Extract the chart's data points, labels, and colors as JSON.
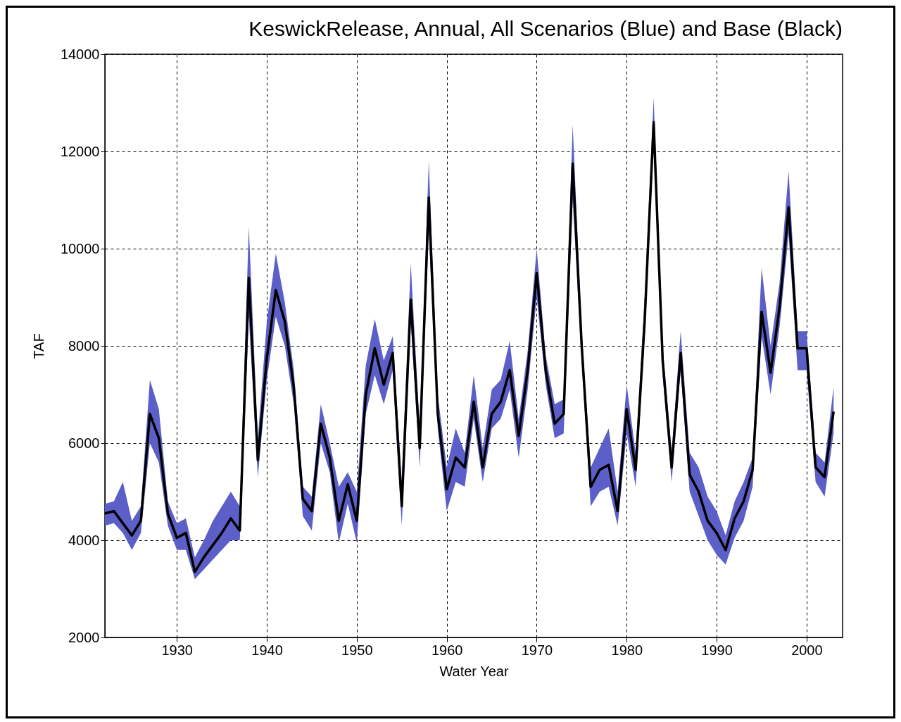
{
  "chart_data": {
    "type": "line",
    "title": "KeswickRelease, Annual, All Scenarios (Blue) and Base (Black)",
    "xlabel": "Water Year",
    "ylabel": "TAF",
    "x": [
      1922,
      1923,
      1924,
      1925,
      1926,
      1927,
      1928,
      1929,
      1930,
      1931,
      1932,
      1933,
      1934,
      1935,
      1936,
      1937,
      1938,
      1939,
      1940,
      1941,
      1942,
      1943,
      1944,
      1945,
      1946,
      1947,
      1948,
      1949,
      1950,
      1951,
      1952,
      1953,
      1954,
      1955,
      1956,
      1957,
      1958,
      1959,
      1960,
      1961,
      1962,
      1963,
      1964,
      1965,
      1966,
      1967,
      1968,
      1969,
      1970,
      1971,
      1972,
      1973,
      1974,
      1975,
      1976,
      1977,
      1978,
      1979,
      1980,
      1981,
      1982,
      1983,
      1984,
      1985,
      1986,
      1987,
      1988,
      1989,
      1990,
      1991,
      1992,
      1993,
      1994,
      1995,
      1996,
      1997,
      1998,
      1999,
      2000,
      2001,
      2002,
      2003
    ],
    "series": [
      {
        "color": "#000000",
        "values": [
          4550,
          4600,
          4350,
          4100,
          4400,
          6600,
          6100,
          4550,
          4050,
          4150,
          3350,
          3650,
          3900,
          4150,
          4450,
          4200,
          9400,
          5650,
          7750,
          9150,
          8500,
          7150,
          4850,
          4600,
          6400,
          5700,
          4400,
          5150,
          4400,
          7000,
          7950,
          7200,
          7850,
          4700,
          8950,
          5900,
          11050,
          6600,
          5050,
          5700,
          5500,
          6850,
          5500,
          6600,
          6850,
          7500,
          6150,
          7500,
          9500,
          7500,
          6400,
          6600,
          11750,
          8000,
          5100,
          5450,
          5550,
          4600,
          6700,
          5450,
          8500,
          12600,
          7700,
          5500,
          7850,
          5350,
          5000,
          4400,
          4150,
          3800,
          4450,
          4800,
          5450,
          8700,
          7450,
          8800,
          10850,
          7950,
          7950,
          5500,
          5300,
          6650
        ],
        "upper": [
          4750,
          4800,
          5200,
          4400,
          4700,
          7300,
          6700,
          4800,
          4350,
          4450,
          3650,
          4000,
          4400,
          4700,
          5000,
          4700,
          10450,
          6100,
          8500,
          9900,
          8900,
          7500,
          5100,
          4900,
          6800,
          6000,
          5100,
          5400,
          5000,
          7600,
          8550,
          7700,
          8200,
          5200,
          9700,
          6300,
          11800,
          7000,
          5500,
          6300,
          5800,
          7400,
          5900,
          7100,
          7300,
          8100,
          6500,
          7900,
          10000,
          7800,
          6800,
          6900,
          12550,
          8300,
          5500,
          5900,
          6300,
          5000,
          7200,
          5800,
          9000,
          13100,
          8000,
          5800,
          8300,
          5800,
          5500,
          4900,
          4600,
          4100,
          4800,
          5200,
          5700,
          9600,
          8000,
          9300,
          11600,
          8300,
          8300,
          5800,
          5600,
          7150
        ],
        "lower": [
          4300,
          4350,
          4150,
          3800,
          4150,
          6000,
          5600,
          4300,
          3800,
          3800,
          3200,
          3400,
          3600,
          3800,
          4000,
          4000,
          8600,
          5300,
          7300,
          8600,
          8000,
          6800,
          4500,
          4200,
          6000,
          5400,
          3950,
          4750,
          3950,
          6600,
          7400,
          6800,
          7500,
          4300,
          8500,
          5500,
          10400,
          6300,
          4600,
          5200,
          5100,
          6500,
          5200,
          6300,
          6500,
          7100,
          5700,
          7100,
          9000,
          7200,
          6100,
          6200,
          11000,
          7700,
          4700,
          5000,
          5100,
          4300,
          6200,
          5100,
          8200,
          12200,
          7400,
          5200,
          7500,
          5000,
          4500,
          4000,
          3700,
          3500,
          4050,
          4400,
          5100,
          8200,
          7000,
          8400,
          10300,
          7500,
          7500,
          5200,
          4900,
          6200
        ]
      }
    ],
    "xlim": [
      1922,
      2004
    ],
    "xticks": [
      1930,
      1940,
      1950,
      1960,
      1970,
      1980,
      1990,
      2000
    ],
    "ylim": [
      2000,
      14000
    ],
    "yticks": [
      2000,
      4000,
      6000,
      8000,
      10000,
      12000,
      14000
    ],
    "grid": true,
    "line_style": "solid",
    "marker": "none"
  }
}
